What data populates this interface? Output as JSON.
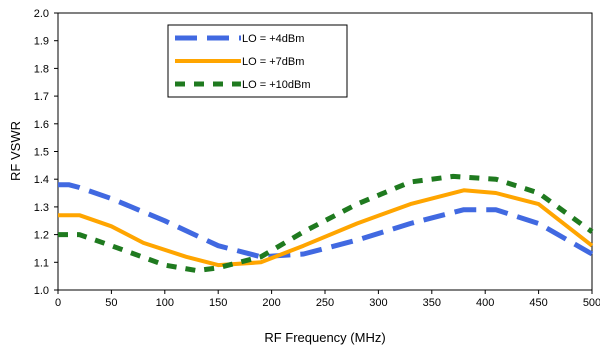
{
  "chart_data": {
    "type": "line",
    "title": "",
    "xlabel": "RF Frequency (MHz)",
    "ylabel": "RF VSWR",
    "xlim": [
      0,
      500
    ],
    "ylim": [
      1.0,
      2.0
    ],
    "x_ticks": [
      0,
      50,
      100,
      150,
      200,
      250,
      300,
      350,
      400,
      450,
      500
    ],
    "y_ticks": [
      "1.0",
      "1.1",
      "1.2",
      "1.3",
      "1.4",
      "1.5",
      "1.6",
      "1.7",
      "1.8",
      "1.9",
      "2.0"
    ],
    "grid": false,
    "legend_position": "top-center",
    "series": [
      {
        "name": "LO = +4dBm",
        "color": "#4169e1",
        "dash": "dashed",
        "x": [
          0,
          10,
          20,
          50,
          100,
          150,
          190,
          230,
          280,
          330,
          380,
          410,
          450,
          500
        ],
        "y": [
          1.38,
          1.38,
          1.37,
          1.33,
          1.25,
          1.16,
          1.12,
          1.13,
          1.18,
          1.24,
          1.29,
          1.29,
          1.24,
          1.13
        ]
      },
      {
        "name": "LO = +7dBm",
        "color": "#ffa500",
        "dash": "solid",
        "x": [
          0,
          20,
          50,
          80,
          120,
          150,
          190,
          230,
          280,
          330,
          380,
          410,
          450,
          500
        ],
        "y": [
          1.27,
          1.27,
          1.23,
          1.17,
          1.12,
          1.09,
          1.1,
          1.16,
          1.24,
          1.31,
          1.36,
          1.35,
          1.31,
          1.16
        ]
      },
      {
        "name": "LO = +10dBm",
        "color": "#1f7a1f",
        "dash": "dashed",
        "x": [
          0,
          20,
          50,
          100,
          130,
          150,
          190,
          230,
          280,
          330,
          370,
          410,
          450,
          500
        ],
        "y": [
          1.2,
          1.2,
          1.16,
          1.09,
          1.07,
          1.08,
          1.12,
          1.21,
          1.31,
          1.39,
          1.41,
          1.4,
          1.35,
          1.21
        ]
      }
    ]
  }
}
